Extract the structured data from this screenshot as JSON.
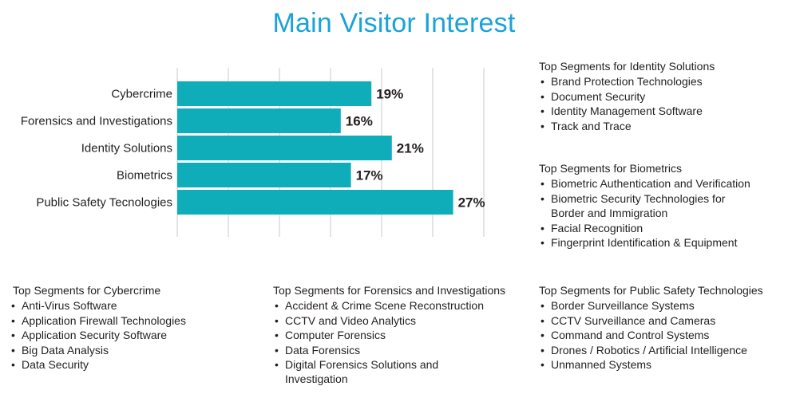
{
  "title": "Main Visitor Interest",
  "chart_data": {
    "type": "bar",
    "orientation": "horizontal",
    "title": "Main Visitor Interest",
    "categories": [
      "Cybercrime",
      "Forensics and Investigations",
      "Identity Solutions",
      "Biometrics",
      "Public Safety Tecnologies"
    ],
    "values": [
      19,
      16,
      21,
      17,
      27
    ],
    "value_labels": [
      "19%",
      "16%",
      "21%",
      "17%",
      "27%"
    ],
    "unit": "%",
    "xlim": [
      0,
      30
    ],
    "grid": "vertical lines",
    "bar_color": "#0fadb9"
  },
  "segments": {
    "identity": {
      "heading": "Top Segments for Identity Solutions",
      "items": [
        "Brand Protection Technologies",
        "Document Security",
        "Identity Management Software",
        "Track and Trace"
      ]
    },
    "biometrics": {
      "heading": "Top Segments for Biometrics",
      "items": [
        "Biometric Authentication and Verification",
        "Biometric Security Technologies for Border and Immigration",
        "Facial Recognition",
        "Fingerprint Identification & Equipment"
      ]
    },
    "cybercrime": {
      "heading": "Top Segments for Cybercrime",
      "items": [
        "Anti-Virus Software",
        "Application Firewall Technologies",
        "Application Security Software",
        "Big Data Analysis",
        "Data Security"
      ]
    },
    "forensics": {
      "heading": "Top Segments for Forensics and Investigations",
      "items": [
        "Accident & Crime Scene Reconstruction",
        "CCTV and Video Analytics",
        "Computer Forensics",
        "Data Forensics",
        "Digital Forensics Solutions and Investigation"
      ]
    },
    "publicsafety": {
      "heading": "Top Segments for Public Safety Technologies",
      "items": [
        "Border Surveillance Systems",
        "CCTV Surveillance and Cameras",
        "Command and Control Systems",
        "Drones / Robotics / Artificial Intelligence",
        "Unmanned Systems"
      ]
    }
  }
}
